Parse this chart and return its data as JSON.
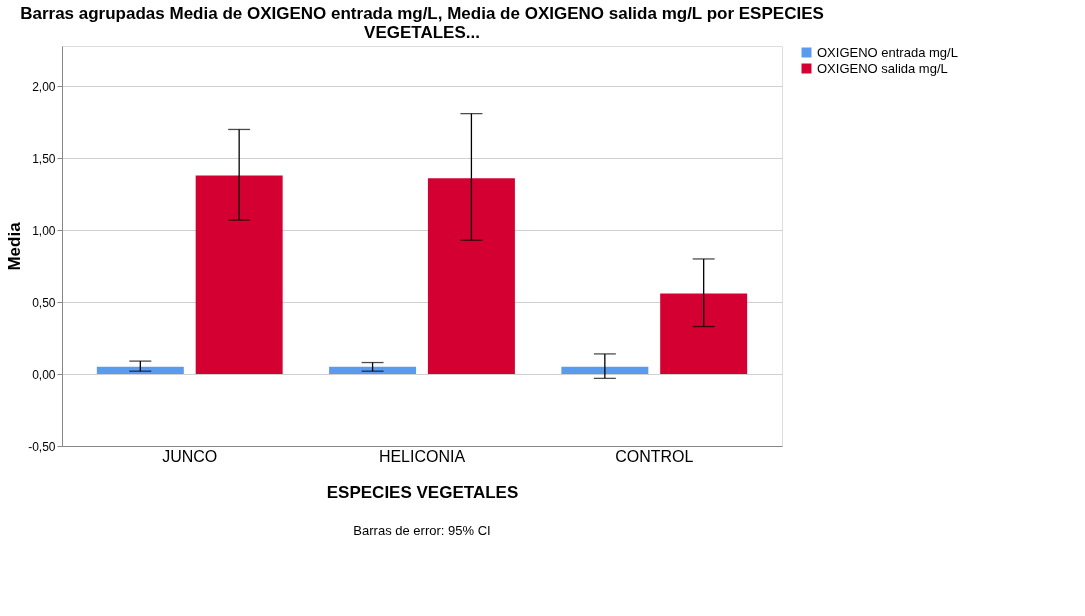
{
  "chart_data": {
    "type": "bar",
    "title": "Barras agrupadas Media de OXIGENO entrada mg/L, Media de OXIGENO salida mg/L por ESPECIES VEGETALES...",
    "xlabel": "ESPECIES VEGETALES",
    "ylabel": "Media",
    "categories": [
      "JUNCO",
      "HELICONIA",
      "CONTROL"
    ],
    "series": [
      {
        "name": "OXIGENO entrada mg/L",
        "color": "#5b9bef",
        "values": [
          0.05,
          0.05,
          0.05
        ],
        "errors": [
          [
            0.02,
            0.09
          ],
          [
            0.02,
            0.08
          ],
          [
            -0.03,
            0.14
          ]
        ]
      },
      {
        "name": "OXIGENO salida mg/L",
        "color": "#d40032",
        "values": [
          1.38,
          1.36,
          0.56
        ],
        "errors": [
          [
            1.07,
            1.7
          ],
          [
            0.93,
            1.81
          ],
          [
            0.33,
            0.8
          ]
        ]
      }
    ],
    "ylim": [
      -0.5,
      2.28
    ],
    "yticks": [
      {
        "value": -0.5,
        "label": "-0,50"
      },
      {
        "value": 0,
        "label": "0,00"
      },
      {
        "value": 0.5,
        "label": "0,50"
      },
      {
        "value": 1,
        "label": "1,00"
      },
      {
        "value": 1.5,
        "label": "1,50"
      },
      {
        "value": 2,
        "label": "2,00"
      }
    ],
    "grid": "y",
    "legend": "top right",
    "annotations": [
      "Barras de error: 95% CI"
    ]
  }
}
